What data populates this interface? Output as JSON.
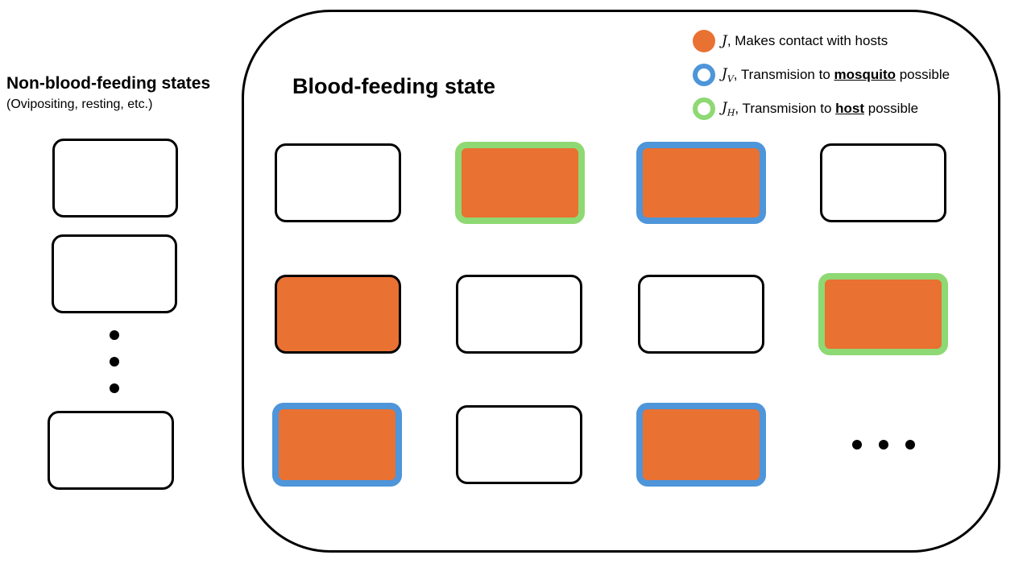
{
  "left_panel": {
    "title": "Non-blood-feeding states",
    "subtitle": "(Ovipositing, resting, etc.)"
  },
  "main_panel": {
    "title": "Blood-feeding state"
  },
  "legend": {
    "contact": {
      "symbol": "J",
      "text": ", Makes contact with hosts",
      "marker_color": "#E97132"
    },
    "mosquito": {
      "symbol": "J",
      "subscript": "V",
      "text_before": ", Transmision to ",
      "emphasis": "mosquito",
      "text_after": " possible",
      "ring_color": "#4E95D9"
    },
    "host": {
      "symbol": "J",
      "subscript": "H",
      "text_before": ", Transmision to ",
      "emphasis": "host",
      "text_after": " possible",
      "ring_color": "#8ED973"
    }
  },
  "grid_states": [
    [
      {
        "contact": false,
        "ring": "none"
      },
      {
        "contact": true,
        "ring": "green"
      },
      {
        "contact": true,
        "ring": "blue"
      },
      {
        "contact": false,
        "ring": "none"
      }
    ],
    [
      {
        "contact": true,
        "ring": "none"
      },
      {
        "contact": false,
        "ring": "none"
      },
      {
        "contact": false,
        "ring": "none"
      },
      {
        "contact": true,
        "ring": "green"
      }
    ],
    [
      {
        "contact": true,
        "ring": "blue"
      },
      {
        "contact": false,
        "ring": "none"
      },
      {
        "contact": true,
        "ring": "blue"
      }
    ]
  ],
  "colors": {
    "contact": "#E97132",
    "mosquito_ring": "#4E95D9",
    "host_ring": "#8ED973"
  }
}
